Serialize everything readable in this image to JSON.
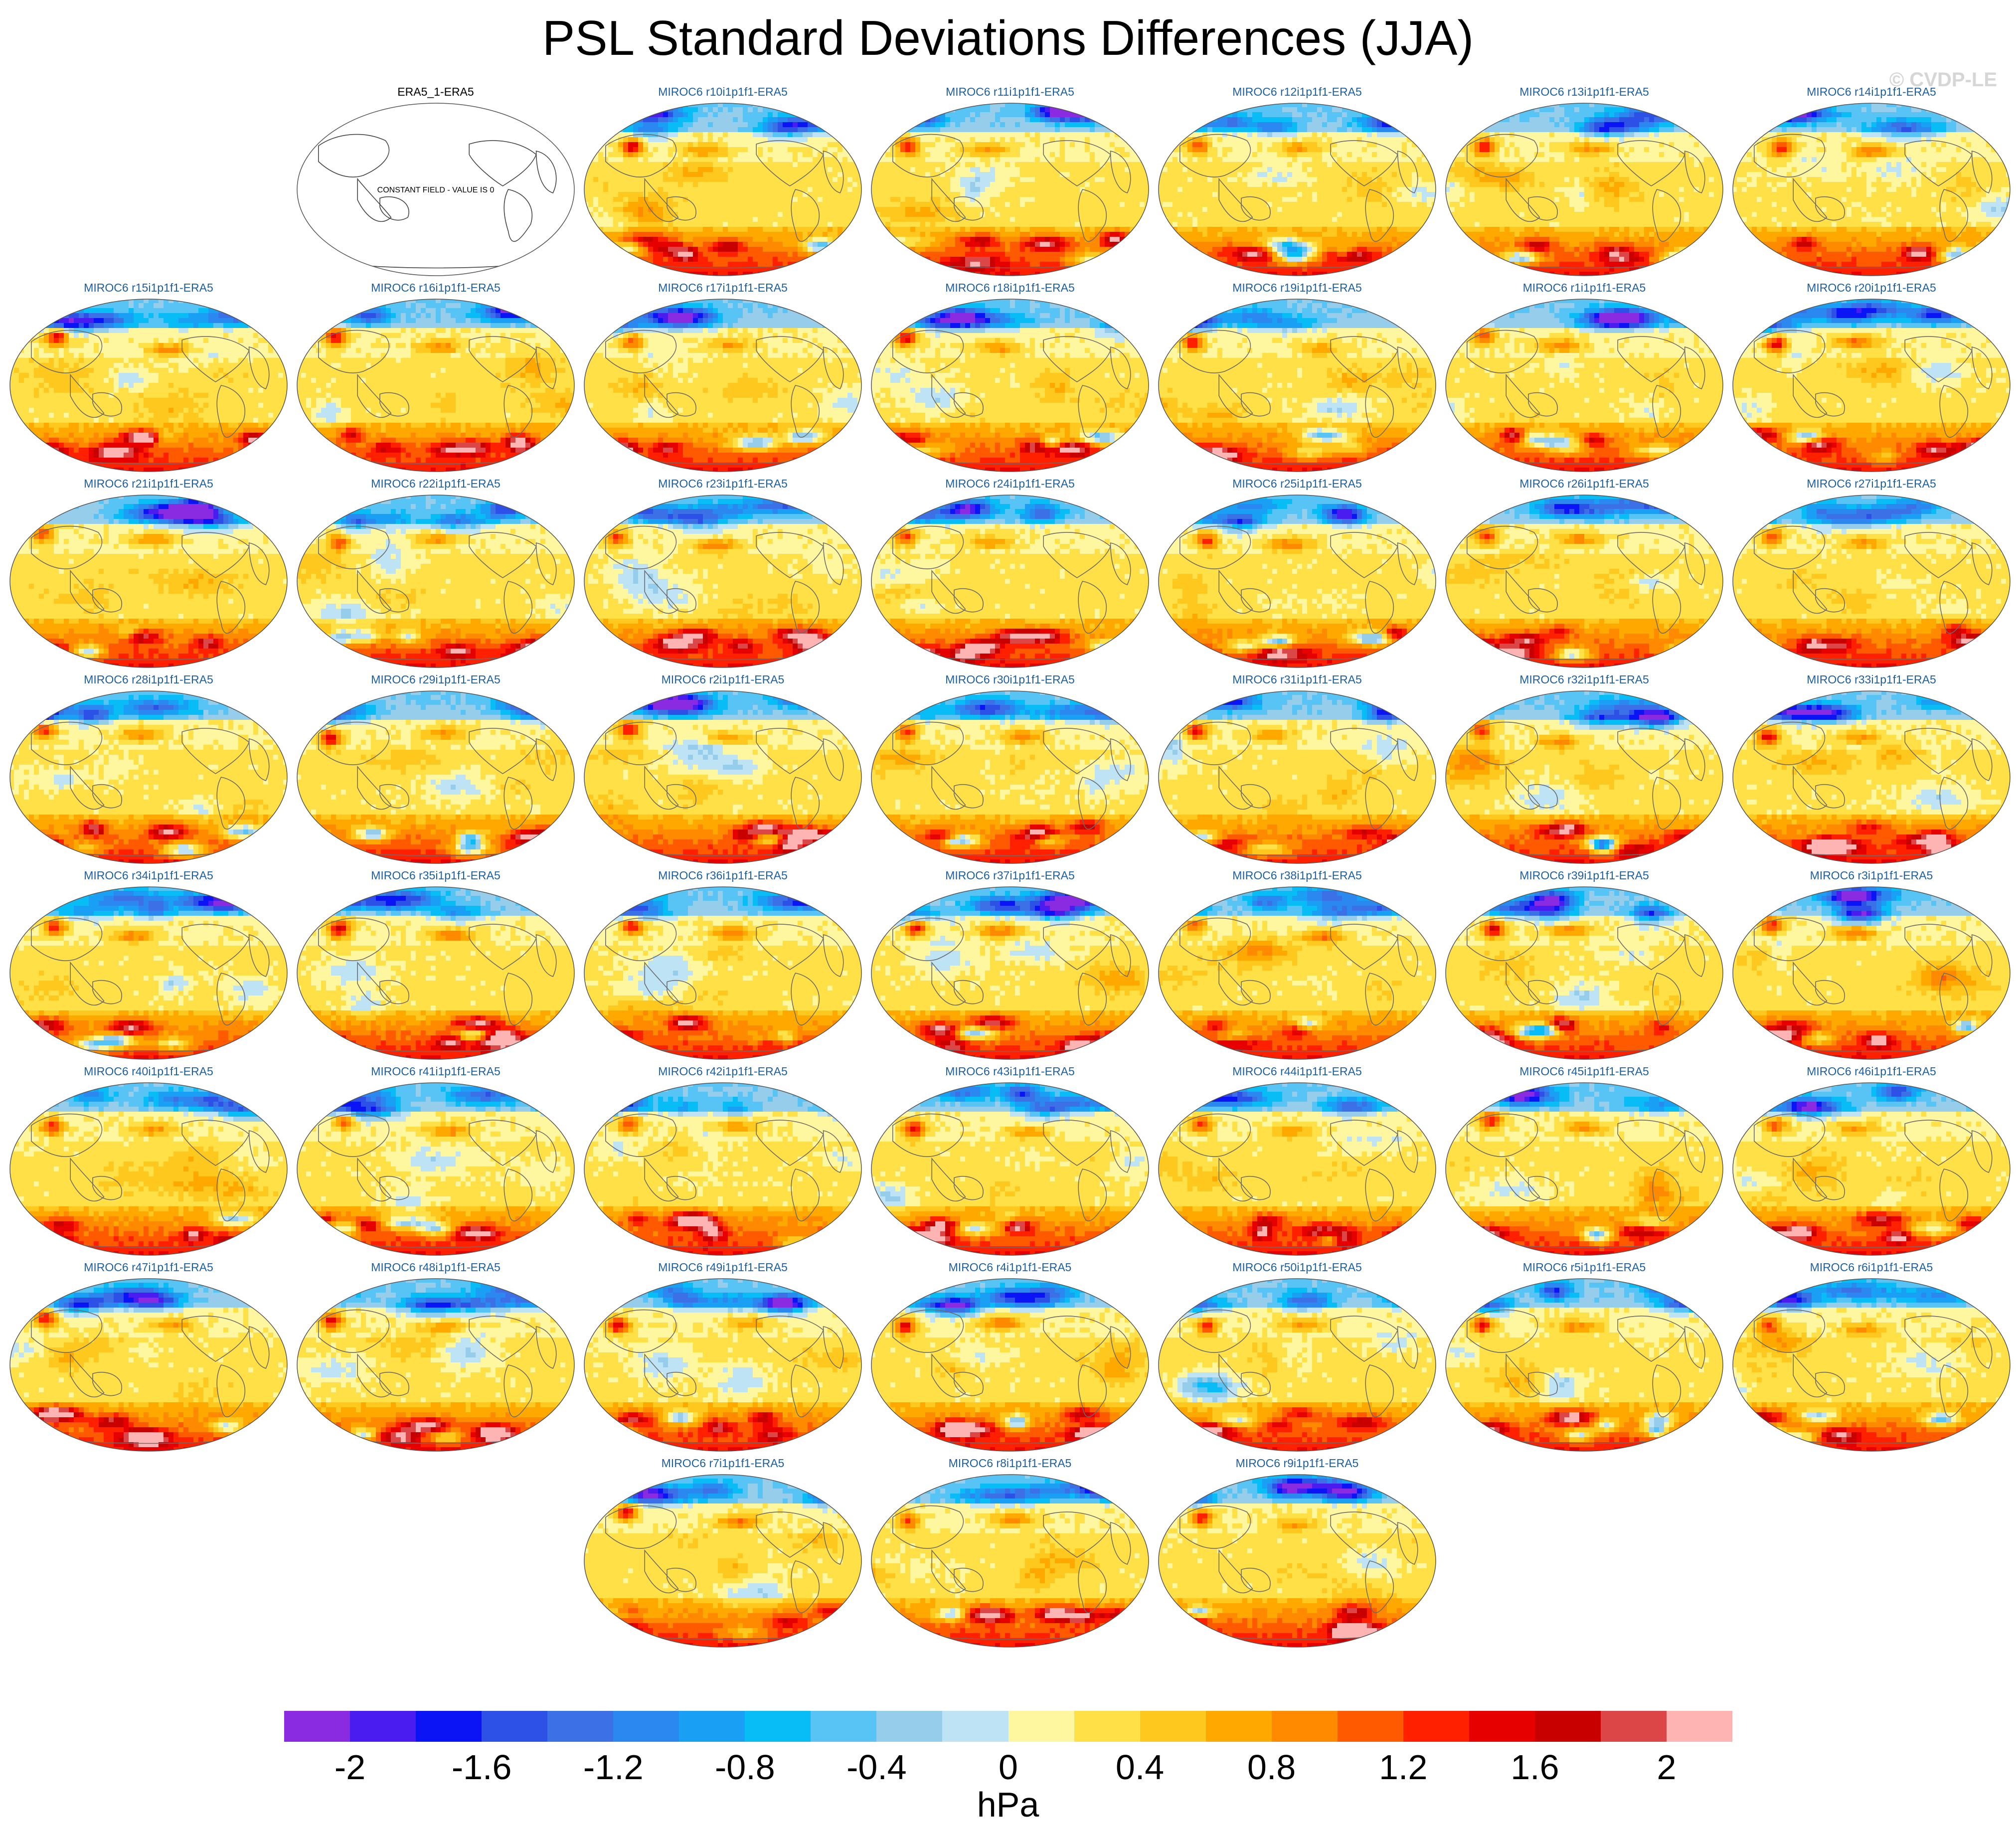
{
  "figure": {
    "title": "PSL Standard Deviations Differences (JJA)",
    "credit": "© CVDP-LE"
  },
  "chart_data": {
    "type": "heatmap",
    "title": "PSL Standard Deviations Differences (JJA)",
    "projection": "global elliptical map (Robinson-like), Pacific-centered",
    "units": "hPa",
    "reference_panel": {
      "label": "ERA5_1-ERA5",
      "annotation": "CONSTANT FIELD - VALUE IS 0",
      "value": 0
    },
    "panel_labels": [
      "MIROC6 r10i1p1f1-ERA5",
      "MIROC6 r11i1p1f1-ERA5",
      "MIROC6 r12i1p1f1-ERA5",
      "MIROC6 r13i1p1f1-ERA5",
      "MIROC6 r14i1p1f1-ERA5",
      "MIROC6 r15i1p1f1-ERA5",
      "MIROC6 r16i1p1f1-ERA5",
      "MIROC6 r17i1p1f1-ERA5",
      "MIROC6 r18i1p1f1-ERA5",
      "MIROC6 r19i1p1f1-ERA5",
      "MIROC6 r1i1p1f1-ERA5",
      "MIROC6 r20i1p1f1-ERA5",
      "MIROC6 r21i1p1f1-ERA5",
      "MIROC6 r22i1p1f1-ERA5",
      "MIROC6 r23i1p1f1-ERA5",
      "MIROC6 r24i1p1f1-ERA5",
      "MIROC6 r25i1p1f1-ERA5",
      "MIROC6 r26i1p1f1-ERA5",
      "MIROC6 r27i1p1f1-ERA5",
      "MIROC6 r28i1p1f1-ERA5",
      "MIROC6 r29i1p1f1-ERA5",
      "MIROC6 r2i1p1f1-ERA5",
      "MIROC6 r30i1p1f1-ERA5",
      "MIROC6 r31i1p1f1-ERA5",
      "MIROC6 r32i1p1f1-ERA5",
      "MIROC6 r33i1p1f1-ERA5",
      "MIROC6 r34i1p1f1-ERA5",
      "MIROC6 r35i1p1f1-ERA5",
      "MIROC6 r36i1p1f1-ERA5",
      "MIROC6 r37i1p1f1-ERA5",
      "MIROC6 r38i1p1f1-ERA5",
      "MIROC6 r39i1p1f1-ERA5",
      "MIROC6 r3i1p1f1-ERA5",
      "MIROC6 r40i1p1f1-ERA5",
      "MIROC6 r41i1p1f1-ERA5",
      "MIROC6 r42i1p1f1-ERA5",
      "MIROC6 r43i1p1f1-ERA5",
      "MIROC6 r44i1p1f1-ERA5",
      "MIROC6 r45i1p1f1-ERA5",
      "MIROC6 r46i1p1f1-ERA5",
      "MIROC6 r47i1p1f1-ERA5",
      "MIROC6 r48i1p1f1-ERA5",
      "MIROC6 r49i1p1f1-ERA5",
      "MIROC6 r4i1p1f1-ERA5",
      "MIROC6 r50i1p1f1-ERA5",
      "MIROC6 r5i1p1f1-ERA5",
      "MIROC6 r6i1p1f1-ERA5",
      "MIROC6 r7i1p1f1-ERA5",
      "MIROC6 r8i1p1f1-ERA5",
      "MIROC6 r9i1p1f1-ERA5"
    ],
    "colorbar": {
      "units": "hPa",
      "levels": [
        -2.0,
        -1.8,
        -1.6,
        -1.4,
        -1.2,
        -1.0,
        -0.8,
        -0.6,
        -0.4,
        -0.2,
        0.0,
        0.2,
        0.4,
        0.6,
        0.8,
        1.0,
        1.2,
        1.4,
        1.6,
        1.8,
        2.0
      ],
      "tick_labels": [
        "-2",
        "-1.6",
        "-1.2",
        "-0.8",
        "-0.4",
        "0",
        "0.4",
        "0.8",
        "1.2",
        "1.6",
        "2"
      ],
      "colors": [
        "#8a2be2",
        "#4b1cf0",
        "#0a14f5",
        "#2d50e6",
        "#3c70e6",
        "#2a88f0",
        "#19a0f5",
        "#08bcf5",
        "#58c4f5",
        "#96cdeb",
        "#bee3f5",
        "#fff6a0",
        "#ffe046",
        "#ffc81e",
        "#ffa800",
        "#ff8a00",
        "#ff5a00",
        "#ff2000",
        "#e60000",
        "#c80000",
        "#dc4646",
        "#ffb4b4"
      ]
    },
    "typical_pattern": {
      "northern_high_latitudes": "mostly negative (blue)",
      "tropics": "weakly positive to neutral (yellow)",
      "southern_ocean_near_60S": "strongly positive (orange to red)"
    }
  }
}
